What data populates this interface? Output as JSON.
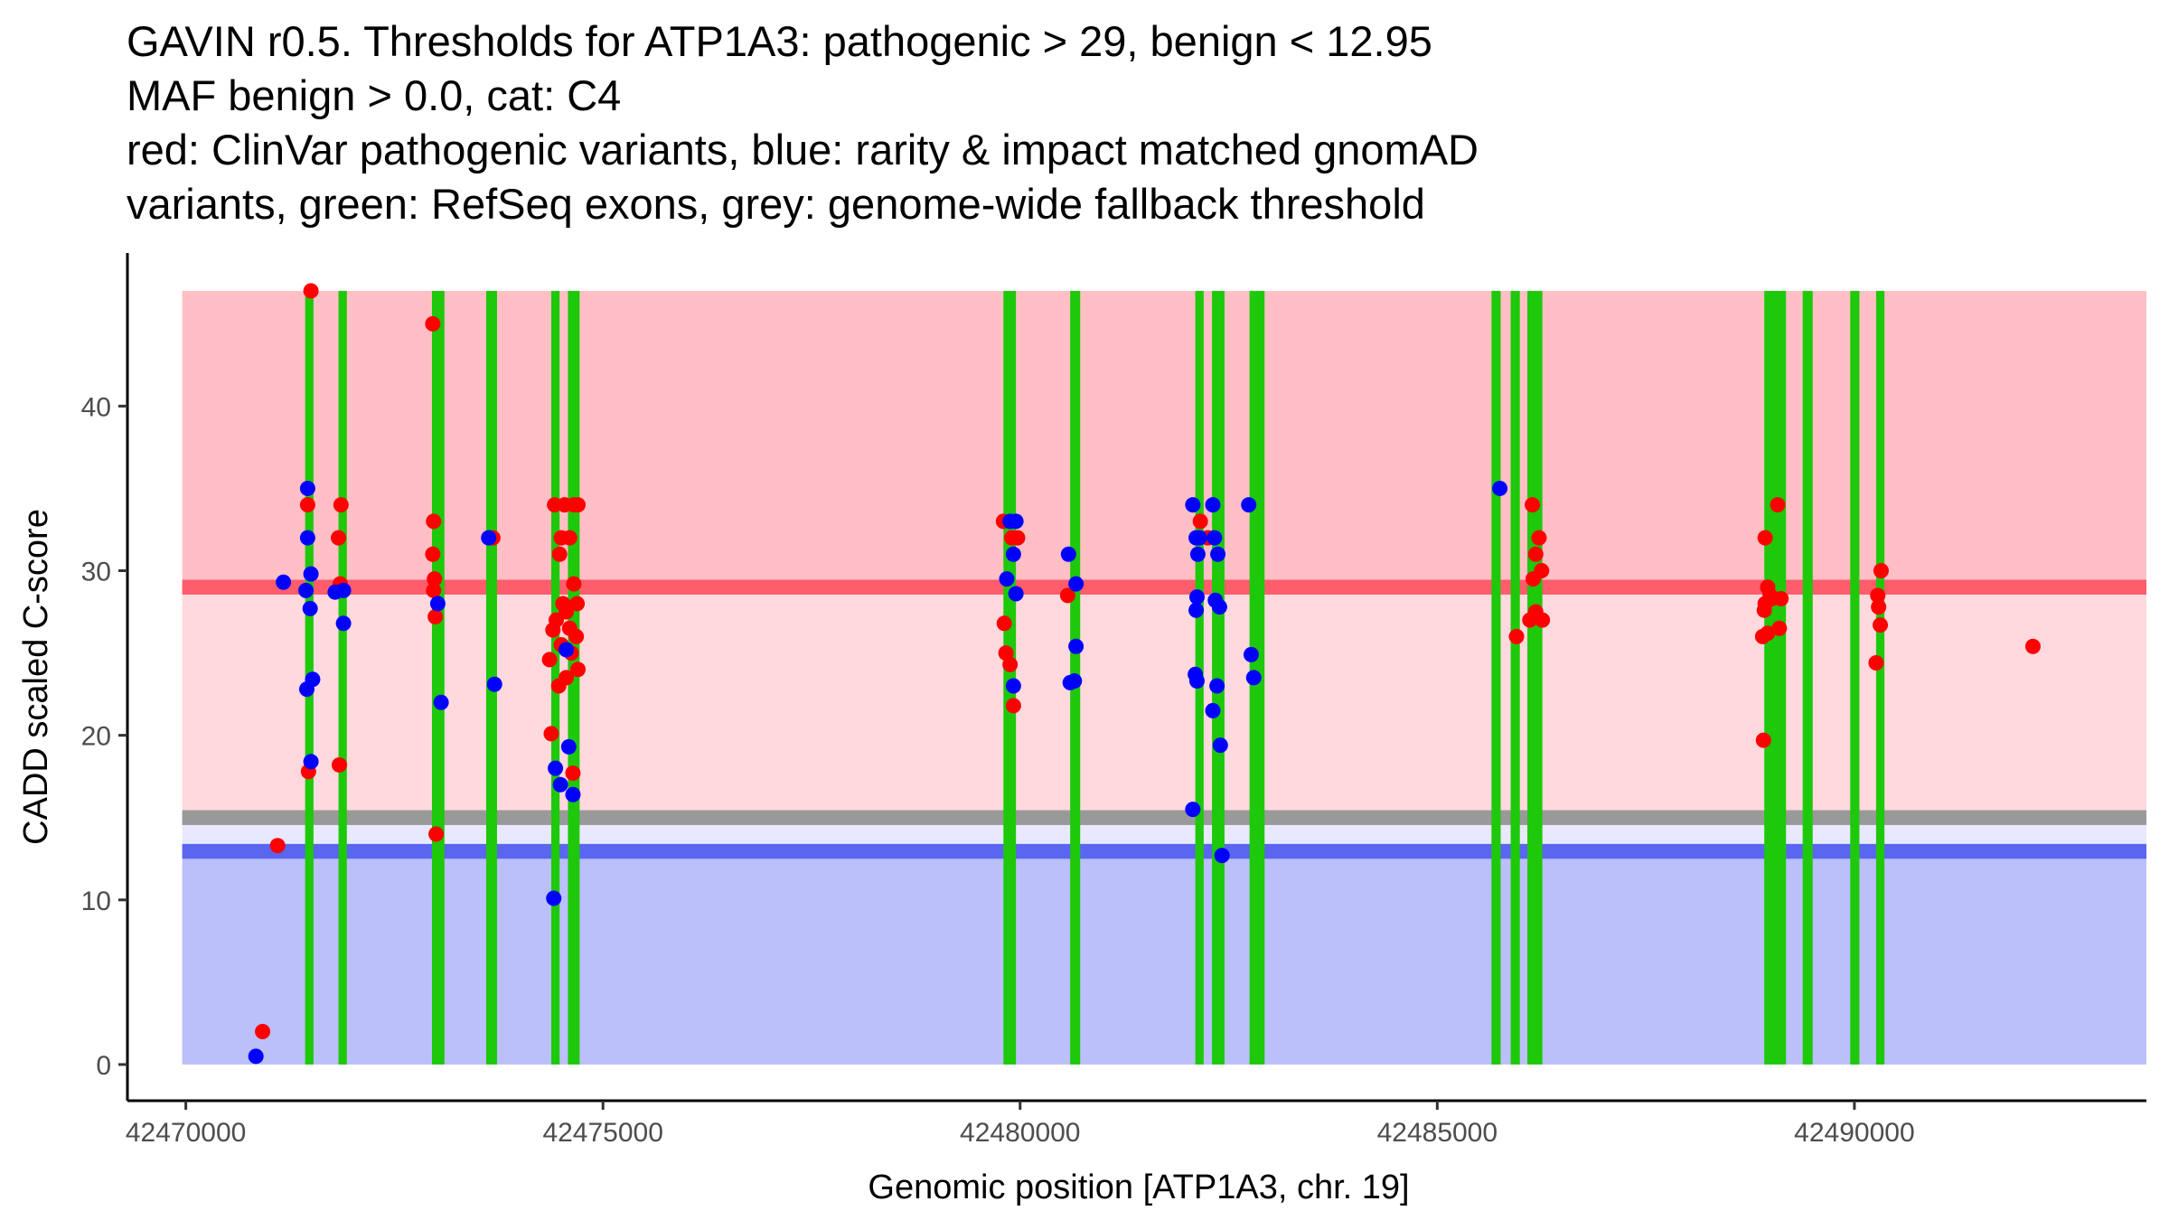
{
  "chart_data": {
    "type": "scatter",
    "title_lines": [
      "GAVIN r0.5. Thresholds for ATP1A3: pathogenic > 29, benign < 12.95",
      "MAF benign > 0.0, cat: C4",
      "red: ClinVar pathogenic variants, blue: rarity & impact matched gnomAD",
      "variants, green: RefSeq exons, grey: genome-wide fallback threshold"
    ],
    "xlabel": "Genomic position [ATP1A3, chr. 19]",
    "ylabel": "CADD scaled C-score",
    "xlim": [
      42469300,
      42493500
    ],
    "ylim": [
      -2.2,
      49.3
    ],
    "x_ticks": [
      42470000,
      42475000,
      42480000,
      42485000,
      42490000
    ],
    "x_tick_labels": [
      "42470000",
      "42475000",
      "42480000",
      "42485000",
      "42490000"
    ],
    "y_ticks": [
      0,
      10,
      20,
      30,
      40
    ],
    "y_tick_labels": [
      "0",
      "10",
      "20",
      "30",
      "40"
    ],
    "thresholds": {
      "pathogenic": 29,
      "benign": 12.95,
      "fallback": 15
    },
    "regions": [
      {
        "name": "pathogenic-region",
        "y0": 29,
        "y1": 47,
        "color": "#ffbfc5"
      },
      {
        "name": "uncertain-region",
        "y0": 15,
        "y1": 29,
        "color": "#ffd9dd"
      },
      {
        "name": "fallback-gap-region",
        "y0": 12.95,
        "y1": 15,
        "color": "#e8e8ff"
      },
      {
        "name": "benign-region",
        "y0": 0,
        "y1": 12.95,
        "color": "#bbbffa"
      }
    ],
    "colors": {
      "pathogenic_line": "#ff5c6c",
      "benign_line": "#5a66f0",
      "fallback_line": "#999999",
      "exon": "#1ec80a",
      "clinvar": "#ff0000",
      "gnomad": "#0000ff",
      "axis": "#000000"
    },
    "exons": [
      [
        42471430,
        42471530
      ],
      [
        42471830,
        42471930
      ],
      [
        42472950,
        42473100
      ],
      [
        42473600,
        42473730
      ],
      [
        42474380,
        42474480
      ],
      [
        42474580,
        42474720
      ],
      [
        42479800,
        42479950
      ],
      [
        42480600,
        42480720
      ],
      [
        42482100,
        42482200
      ],
      [
        42482300,
        42482450
      ],
      [
        42482750,
        42482930
      ],
      [
        42485650,
        42485760
      ],
      [
        42485880,
        42485990
      ],
      [
        42486080,
        42486260
      ],
      [
        42488920,
        42489180
      ],
      [
        42489380,
        42489500
      ],
      [
        42489950,
        42490060
      ],
      [
        42490260,
        42490360
      ]
    ],
    "series": [
      {
        "name": "ClinVar pathogenic",
        "color": "#ff0000",
        "points": [
          [
            42470920,
            2.0
          ],
          [
            42471100,
            13.3
          ],
          [
            42471500,
            47.0
          ],
          [
            42471460,
            34.0
          ],
          [
            42471470,
            17.8
          ],
          [
            42471860,
            34.0
          ],
          [
            42471830,
            32.0
          ],
          [
            42471850,
            29.2
          ],
          [
            42471840,
            18.2
          ],
          [
            42472960,
            45.0
          ],
          [
            42472970,
            33.0
          ],
          [
            42472960,
            31.0
          ],
          [
            42472980,
            29.5
          ],
          [
            42472970,
            28.8
          ],
          [
            42472990,
            27.2
          ],
          [
            42473000,
            14.0
          ],
          [
            42473680,
            32.0
          ],
          [
            42474360,
            24.6
          ],
          [
            42474380,
            20.1
          ],
          [
            42474420,
            34.0
          ],
          [
            42474540,
            34.0
          ],
          [
            42474650,
            34.0
          ],
          [
            42474700,
            34.0
          ],
          [
            42474500,
            32.0
          ],
          [
            42474600,
            32.0
          ],
          [
            42474480,
            31.0
          ],
          [
            42474650,
            29.2
          ],
          [
            42474520,
            28.0
          ],
          [
            42474690,
            28.0
          ],
          [
            42474440,
            27.0
          ],
          [
            42474560,
            27.5
          ],
          [
            42474400,
            26.4
          ],
          [
            42474600,
            26.5
          ],
          [
            42474680,
            26.0
          ],
          [
            42474500,
            25.5
          ],
          [
            42474620,
            25.0
          ],
          [
            42474700,
            24.0
          ],
          [
            42474560,
            23.5
          ],
          [
            42474470,
            23.0
          ],
          [
            42474640,
            17.7
          ],
          [
            42479800,
            33.0
          ],
          [
            42479900,
            32.0
          ],
          [
            42479970,
            32.0
          ],
          [
            42479810,
            26.8
          ],
          [
            42479830,
            25.0
          ],
          [
            42479880,
            24.3
          ],
          [
            42479920,
            21.8
          ],
          [
            42480570,
            28.5
          ],
          [
            42482160,
            33.0
          ],
          [
            42482250,
            32.0
          ],
          [
            42485950,
            26.0
          ],
          [
            42486140,
            34.0
          ],
          [
            42486220,
            32.0
          ],
          [
            42486180,
            31.0
          ],
          [
            42486250,
            30.0
          ],
          [
            42486150,
            29.5
          ],
          [
            42486180,
            27.5
          ],
          [
            42486110,
            27.0
          ],
          [
            42486260,
            27.0
          ],
          [
            42488930,
            32.0
          ],
          [
            42488960,
            29.0
          ],
          [
            42488990,
            28.5
          ],
          [
            42488930,
            28.0
          ],
          [
            42489010,
            28.3
          ],
          [
            42488920,
            27.6
          ],
          [
            42489100,
            26.5
          ],
          [
            42488960,
            26.2
          ],
          [
            42488900,
            26.0
          ],
          [
            42488910,
            19.7
          ],
          [
            42489080,
            34.0
          ],
          [
            42489120,
            28.3
          ],
          [
            42490320,
            30.0
          ],
          [
            42490280,
            28.5
          ],
          [
            42490290,
            27.8
          ],
          [
            42490310,
            26.7
          ],
          [
            42490260,
            24.4
          ],
          [
            42492140,
            25.4
          ]
        ]
      },
      {
        "name": "gnomAD matched",
        "color": "#0000ff",
        "points": [
          [
            42470840,
            0.5
          ],
          [
            42471170,
            29.3
          ],
          [
            42471460,
            35.0
          ],
          [
            42471460,
            32.0
          ],
          [
            42471500,
            29.8
          ],
          [
            42471440,
            28.8
          ],
          [
            42471490,
            27.7
          ],
          [
            42471520,
            23.4
          ],
          [
            42471450,
            22.8
          ],
          [
            42471500,
            18.4
          ],
          [
            42471790,
            28.7
          ],
          [
            42471890,
            28.8
          ],
          [
            42471890,
            26.8
          ],
          [
            42473020,
            28.0
          ],
          [
            42473060,
            22.0
          ],
          [
            42473630,
            32.0
          ],
          [
            42473700,
            23.1
          ],
          [
            42474410,
            10.1
          ],
          [
            42474430,
            18.0
          ],
          [
            42474490,
            17.0
          ],
          [
            42474560,
            25.2
          ],
          [
            42474590,
            19.3
          ],
          [
            42474640,
            16.4
          ],
          [
            42479880,
            33.0
          ],
          [
            42479950,
            33.0
          ],
          [
            42479920,
            31.0
          ],
          [
            42479950,
            28.6
          ],
          [
            42479840,
            29.5
          ],
          [
            42479920,
            23.0
          ],
          [
            42480580,
            31.0
          ],
          [
            42480670,
            29.2
          ],
          [
            42480670,
            25.4
          ],
          [
            42480600,
            23.2
          ],
          [
            42480650,
            23.3
          ],
          [
            42482070,
            34.0
          ],
          [
            42482110,
            32.0
          ],
          [
            42482150,
            32.0
          ],
          [
            42482130,
            31.0
          ],
          [
            42482120,
            28.4
          ],
          [
            42482110,
            27.6
          ],
          [
            42482100,
            23.7
          ],
          [
            42482120,
            23.3
          ],
          [
            42482070,
            15.5
          ],
          [
            42482310,
            34.0
          ],
          [
            42482330,
            32.0
          ],
          [
            42482370,
            31.0
          ],
          [
            42482340,
            28.2
          ],
          [
            42482390,
            27.8
          ],
          [
            42482360,
            23.0
          ],
          [
            42482310,
            21.5
          ],
          [
            42482400,
            19.4
          ],
          [
            42482420,
            12.7
          ],
          [
            42482740,
            34.0
          ],
          [
            42482770,
            24.9
          ],
          [
            42482800,
            23.5
          ],
          [
            42485750,
            35.0
          ]
        ]
      }
    ]
  }
}
